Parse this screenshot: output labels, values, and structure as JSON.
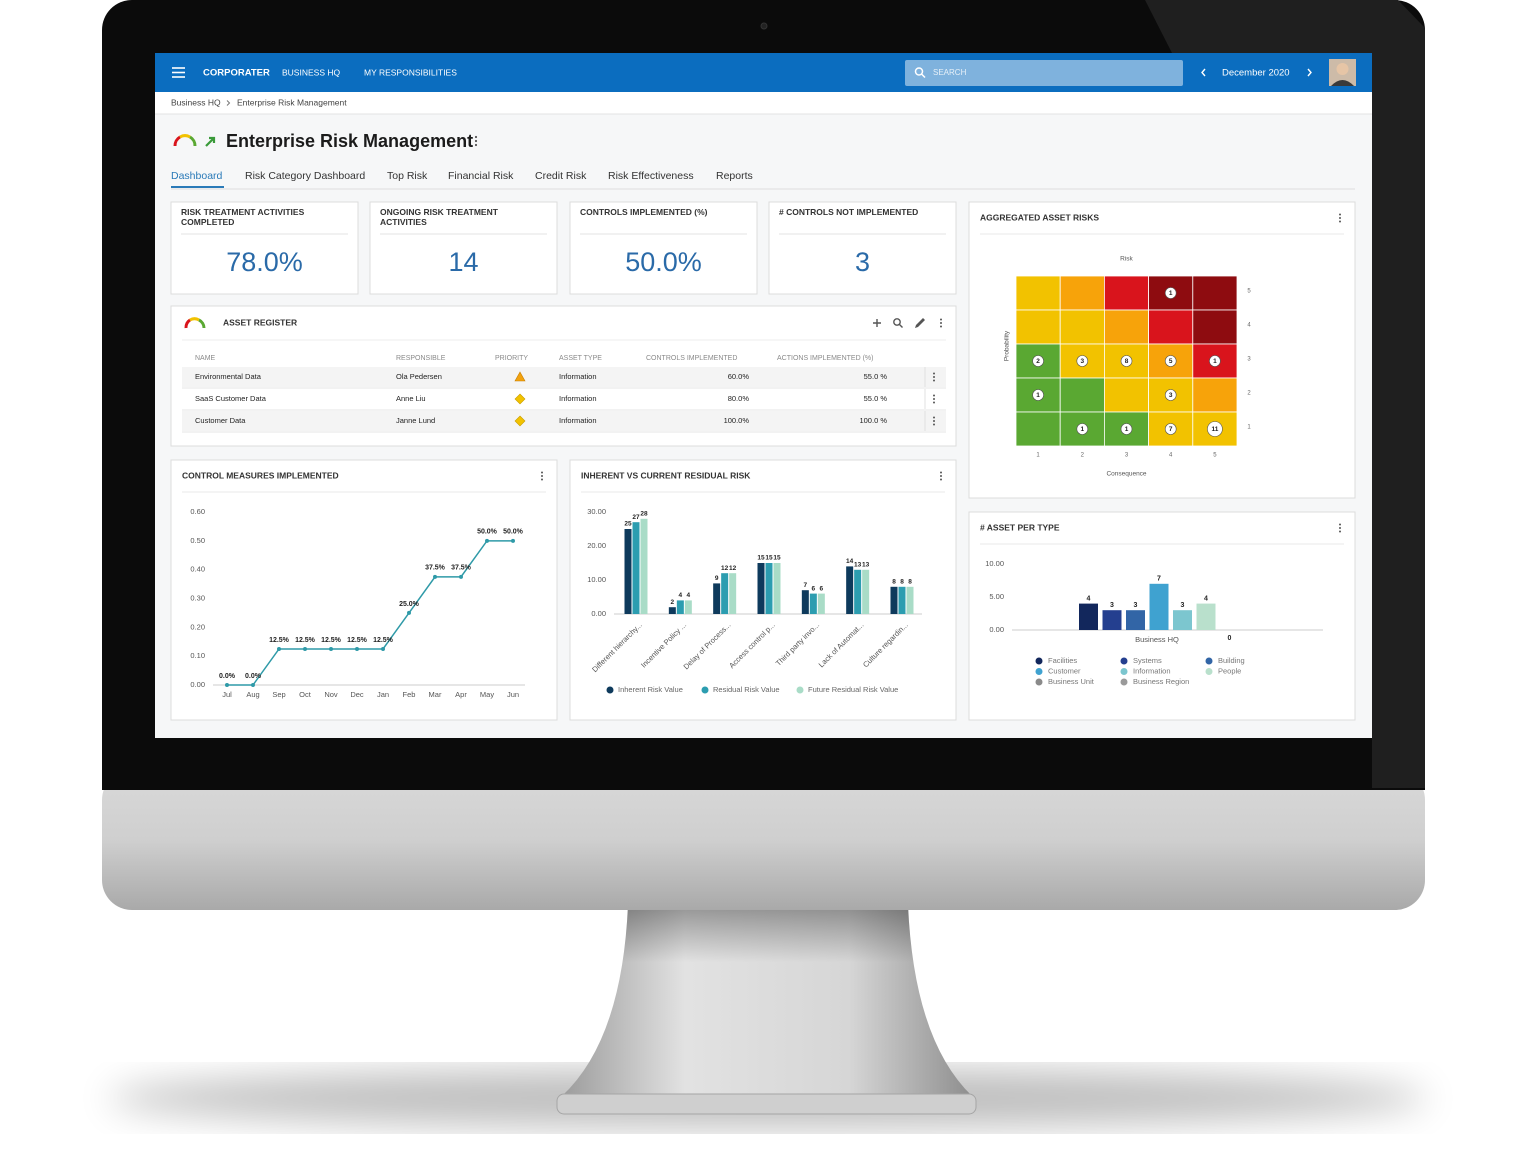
{
  "nav": {
    "brand": "CORPORATER",
    "links": [
      "BUSINESS HQ",
      "MY RESPONSIBILITIES"
    ],
    "search": "SEARCH",
    "period": "December 2020"
  },
  "breadcrumb": [
    "Business HQ",
    "Enterprise Risk Management"
  ],
  "title": "Enterprise Risk Management",
  "tabs": [
    "Dashboard",
    "Risk Category Dashboard",
    "Top Risk",
    "Financial Risk",
    "Credit Risk",
    "Risk Effectiveness",
    "Reports"
  ],
  "kpis": [
    {
      "label": "RISK TREATMENT ACTIVITIES COMPLETED",
      "value": "78.0%"
    },
    {
      "label": "ONGOING RISK TREATMENT ACTIVITIES",
      "value": "14"
    },
    {
      "label": "CONTROLS IMPLEMENTED (%)",
      "value": "50.0%"
    },
    {
      "label": "# CONTROLS NOT IMPLEMENTED",
      "value": "3"
    }
  ],
  "asset_register": {
    "title": "ASSET REGISTER",
    "columns": [
      "NAME",
      "RESPONSIBLE",
      "PRIORITY",
      "ASSET TYPE",
      "CONTROLS IMPLEMENTED",
      "ACTIONS IMPLEMENTED (%)"
    ],
    "rows": [
      {
        "name": "Environmental Data",
        "responsible": "Ola Pedersen",
        "asset_type": "Information",
        "controls": "60.0%",
        "actions": "55.0 %"
      },
      {
        "name": "SaaS Customer Data",
        "responsible": "Anne Liu",
        "asset_type": "Information",
        "controls": "80.0%",
        "actions": "55.0 %"
      },
      {
        "name": "Customer Data",
        "responsible": "Janne Lund",
        "asset_type": "Information",
        "controls": "100.0%",
        "actions": "100.0 %"
      }
    ]
  },
  "chart_data": [
    {
      "type": "line",
      "title": "CONTROL MEASURES IMPLEMENTED",
      "categories": [
        "Jul",
        "Aug",
        "Sep",
        "Oct",
        "Nov",
        "Dec",
        "Jan",
        "Feb",
        "Mar",
        "Apr",
        "May",
        "Jun"
      ],
      "values": [
        0,
        0,
        0.125,
        0.125,
        0.125,
        0.125,
        0.125,
        0.25,
        0.375,
        0.375,
        0.5,
        0.5
      ],
      "value_labels": [
        "0.0%",
        "0.0%",
        "12.5%",
        "12.5%",
        "12.5%",
        "12.5%",
        "12.5%",
        "25.0%",
        "37.5%",
        "37.5%",
        "50.0%",
        "50.0%"
      ],
      "color": "#2f9aa8",
      "ylim": [
        0,
        0.6
      ],
      "yticks": [
        {
          "value": 0,
          "label": "0.00"
        },
        {
          "value": 0.1,
          "label": "0.10"
        },
        {
          "value": 0.2,
          "label": "0.20"
        },
        {
          "value": 0.3,
          "label": "0.30"
        },
        {
          "value": 0.4,
          "label": "0.40"
        },
        {
          "value": 0.5,
          "label": "0.50"
        },
        {
          "value": 0.6,
          "label": "0.60"
        }
      ]
    },
    {
      "type": "grouped_bar",
      "title": "INHERENT VS CURRENT RESIDUAL RISK",
      "categories": [
        "Different hierarchy...",
        "Incentive Policy ...",
        "Delay of Process...",
        "Access control p...",
        "Third party invo...",
        "Lack of Automat...",
        "Culture regardin..."
      ],
      "series": [
        {
          "name": "Inherent Risk Value",
          "color": "#0e3a5c",
          "values": [
            25,
            2,
            9,
            15,
            7,
            14,
            8
          ]
        },
        {
          "name": "Residual Risk Value",
          "color": "#2c9db0",
          "values": [
            27,
            4,
            12,
            15,
            6,
            13,
            8
          ]
        },
        {
          "name": "Future Residual Risk Value",
          "color": "#a9dcc7",
          "values": [
            28,
            4,
            12,
            15,
            6,
            13,
            8
          ]
        }
      ],
      "ylim": [
        0,
        30
      ],
      "yticks": [
        {
          "value": 0,
          "label": "0.00"
        },
        {
          "value": 10,
          "label": "10.00"
        },
        {
          "value": 20,
          "label": "20.00"
        },
        {
          "value": 30,
          "label": "30.00"
        }
      ]
    },
    {
      "type": "heatmap",
      "title": "AGGREGATED ASSET RISKS",
      "subtitle": "Risk",
      "xlabel": "Consequence",
      "ylabel": "Probability",
      "x": [
        1,
        2,
        3,
        4,
        5
      ],
      "y": [
        5,
        4,
        3,
        2,
        1
      ],
      "values": [
        [
          null,
          null,
          null,
          1,
          null
        ],
        [
          null,
          null,
          null,
          null,
          null
        ],
        [
          2,
          3,
          8,
          5,
          1
        ],
        [
          1,
          null,
          null,
          3,
          null
        ],
        [
          null,
          1,
          1,
          7,
          11
        ]
      ],
      "colors": [
        [
          "#f2c200",
          "#f7a30a",
          "#d9141c",
          "#8e0c10",
          "#8e0c10"
        ],
        [
          "#f2c200",
          "#f2c200",
          "#f7a30a",
          "#d9141c",
          "#8e0c10"
        ],
        [
          "#5aa832",
          "#f2c200",
          "#f2c200",
          "#f7a30a",
          "#d9141c"
        ],
        [
          "#5aa832",
          "#5aa832",
          "#f2c200",
          "#f2c200",
          "#f7a30a"
        ],
        [
          "#5aa832",
          "#5aa832",
          "#5aa832",
          "#f2c200",
          "#f2c200"
        ]
      ]
    },
    {
      "type": "bar",
      "title": "# ASSET PER TYPE",
      "categories": [
        "Business HQ"
      ],
      "series": [
        {
          "name": "Facilities",
          "color": "#12275c",
          "values": [
            4
          ]
        },
        {
          "name": "Systems",
          "color": "#243f8f",
          "values": [
            3
          ]
        },
        {
          "name": "Building",
          "color": "#3265a6",
          "values": [
            3
          ]
        },
        {
          "name": "Customer",
          "color": "#3fa2d0",
          "values": [
            7
          ]
        },
        {
          "name": "Information",
          "color": "#7cc6cf",
          "values": [
            3
          ]
        },
        {
          "name": "People",
          "color": "#b9e0cc",
          "values": [
            4
          ]
        },
        {
          "name": "Business Unit",
          "color": "#8a8a8a",
          "values": [
            0
          ]
        },
        {
          "name": "Business Region",
          "color": "#9a9a9a",
          "values": [
            null
          ]
        }
      ],
      "ylim": [
        0,
        10
      ],
      "yticks": [
        {
          "value": 0,
          "label": "0.00"
        },
        {
          "value": 5,
          "label": "5.00"
        },
        {
          "value": 10,
          "label": "10.00"
        }
      ],
      "legend": "bottom"
    }
  ]
}
